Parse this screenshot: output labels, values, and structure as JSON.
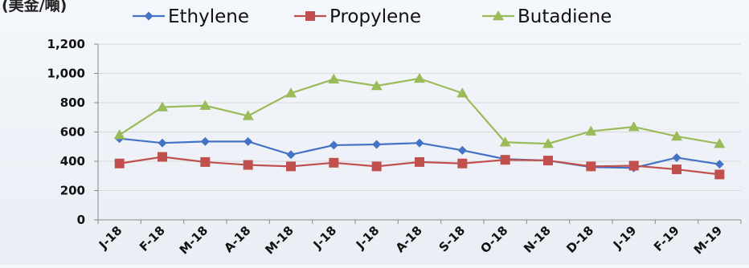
{
  "unit_label": "(美金/噸)",
  "colors": {
    "ethylene": "#4472c4",
    "propylene": "#c0504d",
    "butadiene": "#9bbb59",
    "gridline": "#d9d9d9",
    "axis": "#888888"
  },
  "chart_data": {
    "type": "line",
    "title": "",
    "xlabel": "",
    "ylabel": "",
    "ylim": [
      0,
      1200
    ],
    "yticks": [
      0,
      200,
      400,
      600,
      800,
      1000,
      1200
    ],
    "ytick_labels": [
      "0",
      "200",
      "400",
      "600",
      "800",
      "1,000",
      "1,200"
    ],
    "grid": true,
    "legend_position": "top",
    "categories": [
      "J-18",
      "F-18",
      "M-18",
      "A-18",
      "M-18",
      "J-18",
      "J-18",
      "A-18",
      "S-18",
      "O-18",
      "N-18",
      "D-18",
      "J-19",
      "F-19",
      "M-19"
    ],
    "series": [
      {
        "name": "Ethylene",
        "color_key": "ethylene",
        "marker": "diamond",
        "values": [
          555,
          525,
          535,
          535,
          445,
          510,
          515,
          525,
          475,
          415,
          405,
          360,
          355,
          425,
          380
        ]
      },
      {
        "name": "Propylene",
        "color_key": "propylene",
        "marker": "square",
        "values": [
          385,
          430,
          395,
          375,
          365,
          390,
          365,
          395,
          385,
          410,
          405,
          365,
          370,
          345,
          310
        ]
      },
      {
        "name": "Butadiene",
        "color_key": "butadiene",
        "marker": "triangle",
        "values": [
          580,
          770,
          780,
          710,
          865,
          960,
          915,
          965,
          865,
          530,
          520,
          605,
          635,
          570,
          520
        ]
      }
    ]
  }
}
